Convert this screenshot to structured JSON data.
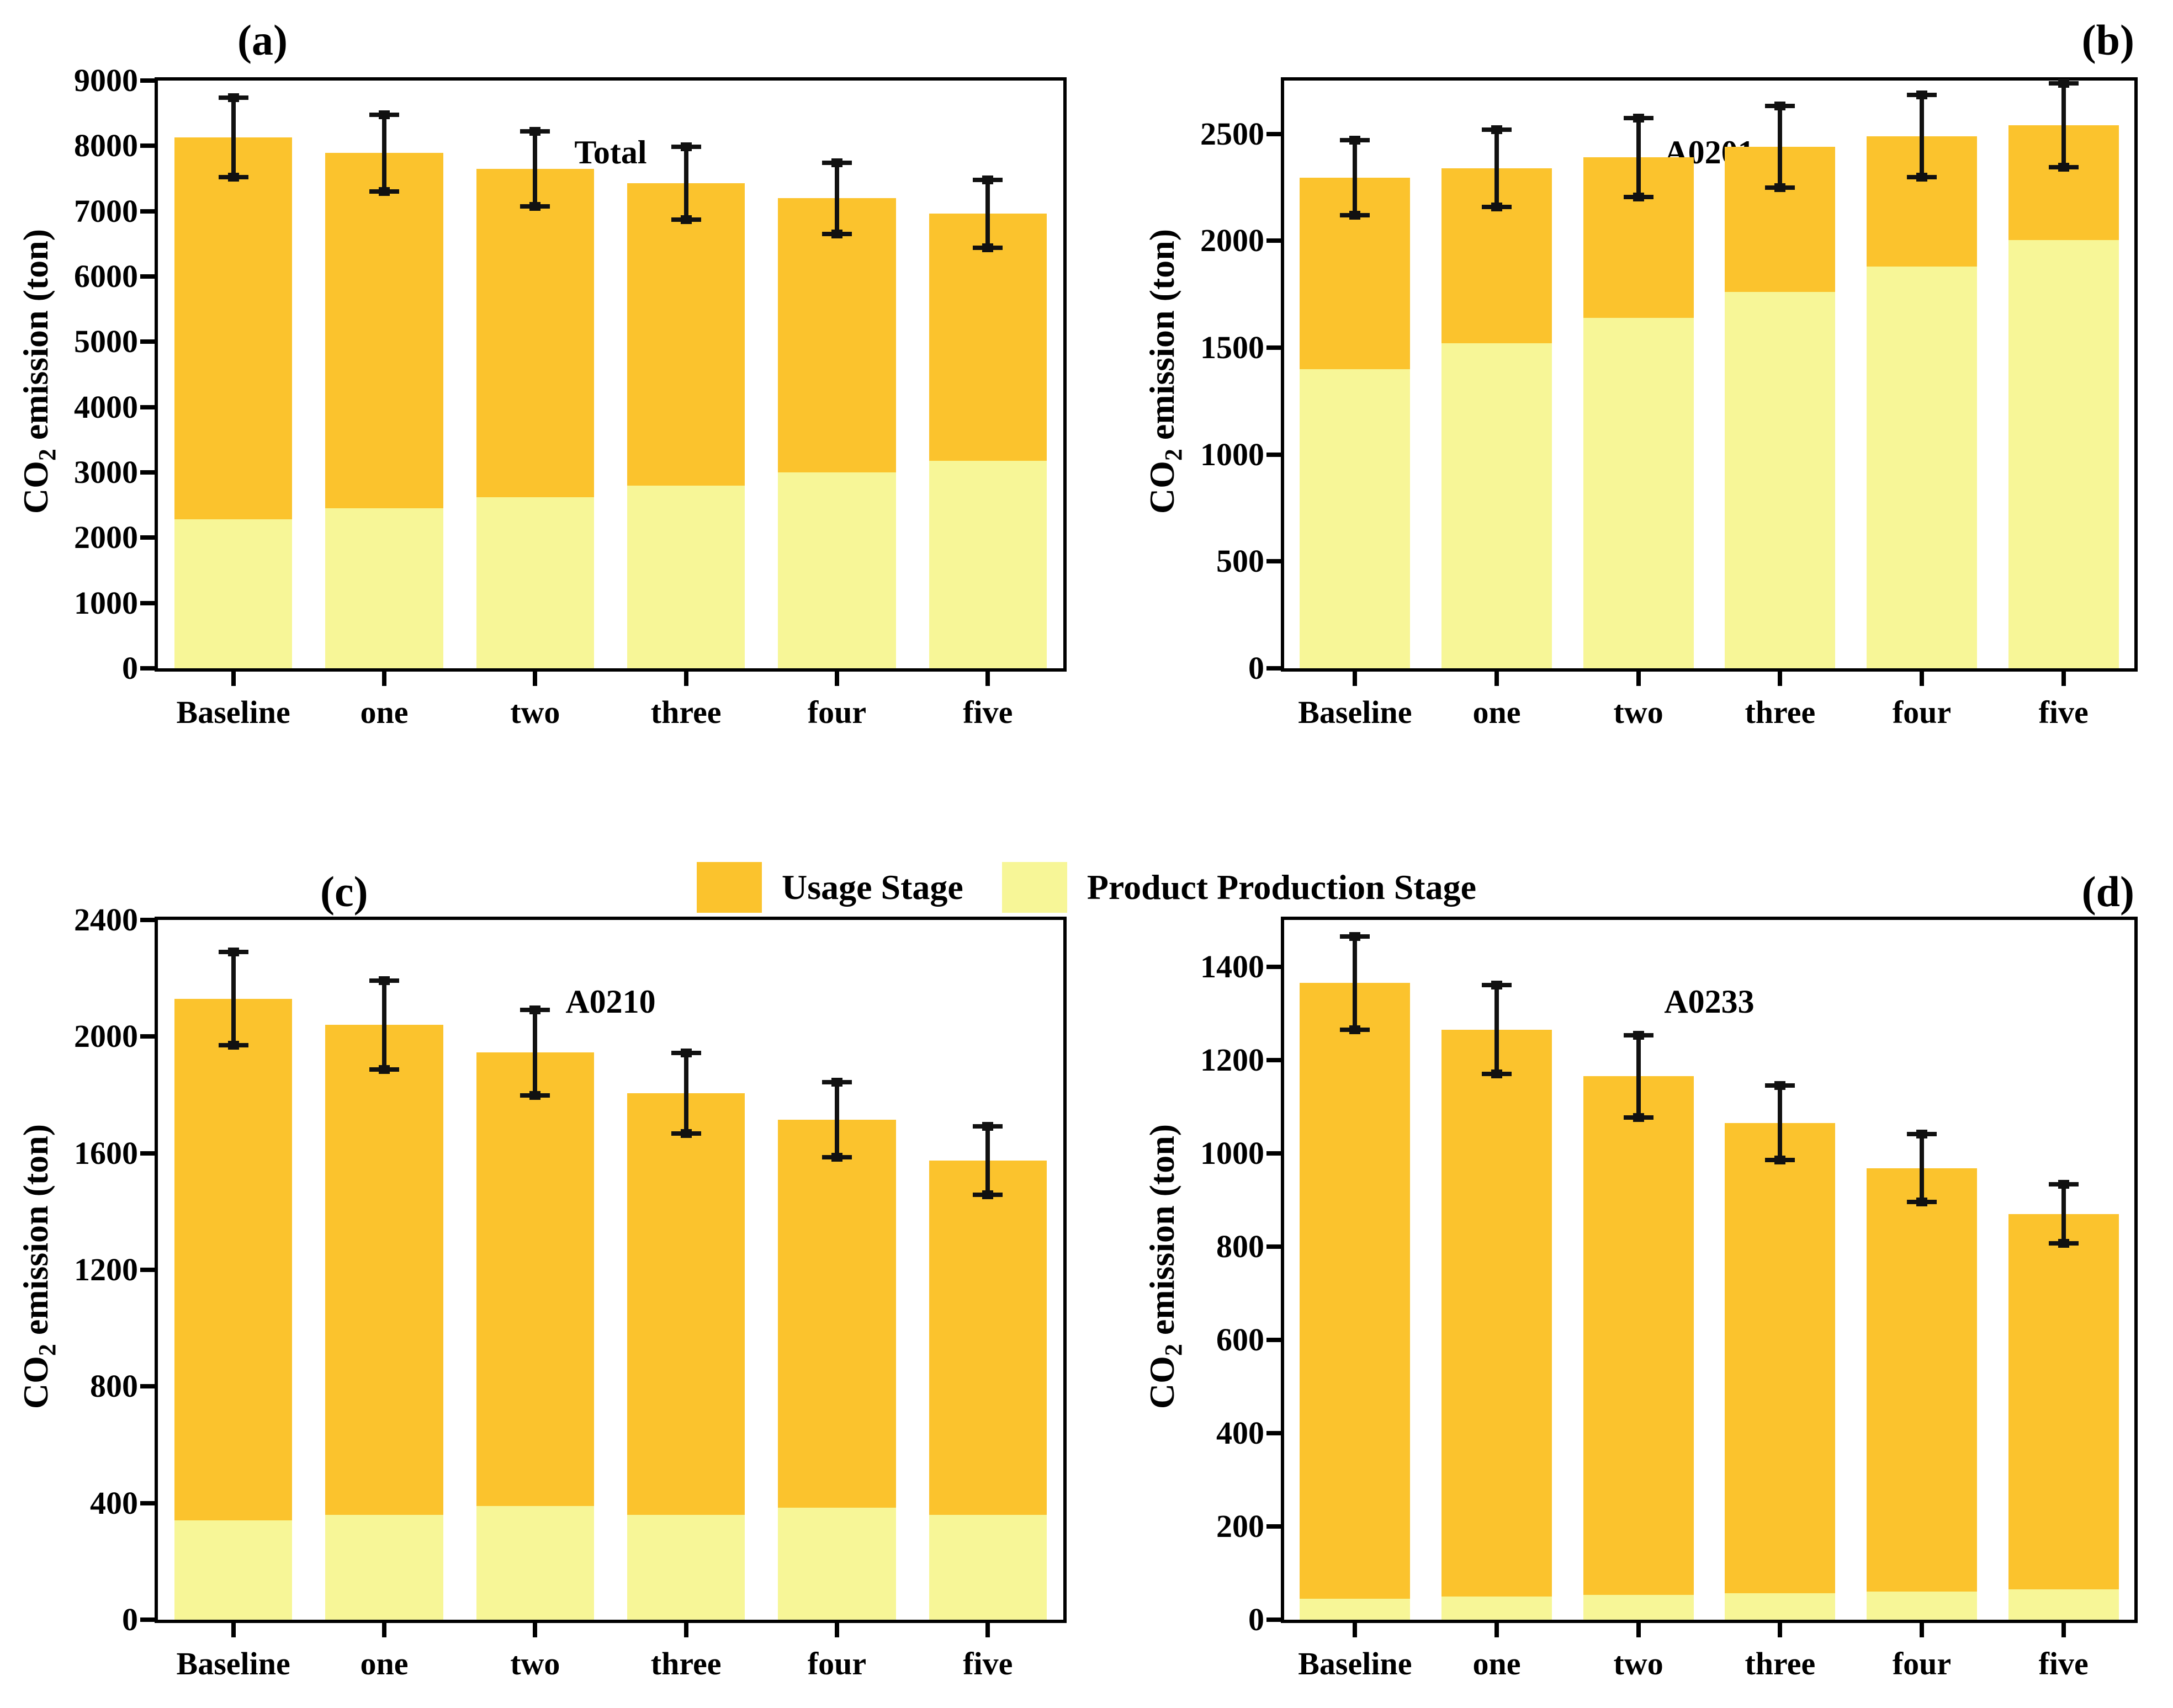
{
  "figure": {
    "ylabel_co": "CO",
    "ylabel_sub": "2",
    "ylabel_rest": " emission (ton)"
  },
  "colors": {
    "usage": "#FBC32D",
    "production": "#F7F697",
    "error": "#111111",
    "axis": "#000000"
  },
  "legend": {
    "items": [
      {
        "key": "usage",
        "label": "Usage Stage"
      },
      {
        "key": "production",
        "label": "Product Production Stage"
      }
    ]
  },
  "categories": [
    "Baseline",
    "one",
    "two",
    "three",
    "four",
    "five"
  ],
  "chart_data": [
    {
      "panel_label": "(a)",
      "title": "Total",
      "type": "bar",
      "stacked": true,
      "xlabel": "",
      "ylabel": "CO2 emission (ton)",
      "categories": [
        "Baseline",
        "one",
        "two",
        "three",
        "four",
        "five"
      ],
      "series": [
        {
          "name": "Product Production Stage",
          "values": [
            2280,
            2450,
            2620,
            2800,
            3000,
            3180
          ]
        },
        {
          "name": "Usage Stage",
          "values": [
            5850,
            5440,
            5030,
            4630,
            4200,
            3780
          ]
        }
      ],
      "totals": [
        8130,
        7890,
        7650,
        7430,
        7200,
        6960
      ],
      "error_bars": [
        610,
        590,
        575,
        560,
        545,
        520
      ],
      "ylim": [
        0,
        9000
      ],
      "ytick_step": 1000,
      "ytick_max": 9000,
      "grid": false,
      "legend_position": "center-figure"
    },
    {
      "panel_label": "(b)",
      "title": "A0201",
      "type": "bar",
      "stacked": true,
      "xlabel": "",
      "ylabel": "CO2 emission (ton)",
      "categories": [
        "Baseline",
        "one",
        "two",
        "three",
        "four",
        "five"
      ],
      "series": [
        {
          "name": "Product Production Stage",
          "values": [
            1400,
            1520,
            1640,
            1760,
            1880,
            2005
          ]
        },
        {
          "name": "Usage Stage",
          "values": [
            895,
            820,
            750,
            680,
            610,
            535
          ]
        }
      ],
      "totals": [
        2295,
        2340,
        2390,
        2440,
        2490,
        2540
      ],
      "error_bars": [
        175,
        180,
        185,
        190,
        193,
        196
      ],
      "ylim": [
        0,
        2750
      ],
      "ytick_step": 500,
      "ytick_max": 2500,
      "grid": false,
      "legend_position": "center-figure"
    },
    {
      "panel_label": "(c)",
      "title": "A0210",
      "type": "bar",
      "stacked": true,
      "xlabel": "",
      "ylabel": "CO2 emission (ton)",
      "categories": [
        "Baseline",
        "one",
        "two",
        "three",
        "four",
        "five"
      ],
      "series": [
        {
          "name": "Product Production Stage",
          "values": [
            340,
            360,
            390,
            360,
            385,
            360
          ]
        },
        {
          "name": "Usage Stage",
          "values": [
            1790,
            1680,
            1555,
            1445,
            1330,
            1215
          ]
        }
      ],
      "totals": [
        2130,
        2040,
        1945,
        1805,
        1715,
        1575
      ],
      "error_bars": [
        160,
        152,
        146,
        138,
        128,
        118
      ],
      "ylim": [
        0,
        2400
      ],
      "ytick_step": 400,
      "ytick_max": 2400,
      "grid": false,
      "legend_position": "center-figure"
    },
    {
      "panel_label": "(d)",
      "title": "A0233",
      "type": "bar",
      "stacked": true,
      "xlabel": "",
      "ylabel": "CO2 emission (ton)",
      "categories": [
        "Baseline",
        "one",
        "two",
        "three",
        "four",
        "five"
      ],
      "series": [
        {
          "name": "Product Production Stage",
          "values": [
            45,
            50,
            53,
            57,
            60,
            65
          ]
        },
        {
          "name": "Usage Stage",
          "values": [
            1320,
            1215,
            1112,
            1008,
            908,
            805
          ]
        }
      ],
      "totals": [
        1365,
        1265,
        1165,
        1065,
        968,
        870
      ],
      "error_bars": [
        100,
        95,
        88,
        80,
        73,
        63
      ],
      "ylim": [
        0,
        1500
      ],
      "ytick_step": 200,
      "ytick_max": 1400,
      "grid": false,
      "legend_position": "center-figure"
    }
  ]
}
